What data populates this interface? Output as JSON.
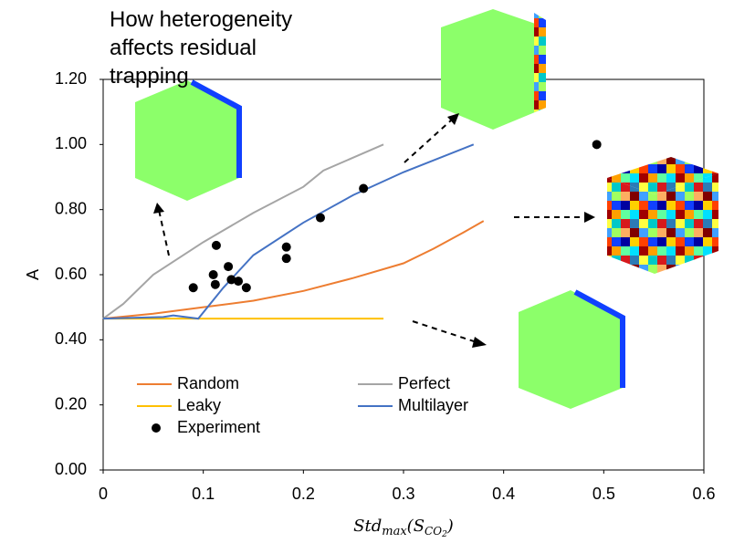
{
  "chart_data": {
    "type": "line",
    "title": "How heterogeneity affects residual trapping",
    "xlabel": [
      "Std",
      "max",
      "(S",
      "CO",
      "2",
      ")"
    ],
    "ylabel": "A",
    "xlim": [
      0,
      0.6
    ],
    "xticks": [
      0,
      0.1,
      0.2,
      0.3,
      0.4,
      0.5,
      0.6
    ],
    "ylim": [
      0,
      1.2
    ],
    "yticks": [
      {
        "value": 0,
        "label": "0.00"
      },
      {
        "value": 0.2,
        "label": "0.20"
      },
      {
        "value": 0.4,
        "label": "0.40"
      },
      {
        "value": 0.6,
        "label": "0.60"
      },
      {
        "value": 0.8,
        "label": "0.80"
      },
      {
        "value": 1.0,
        "label": "1.00"
      },
      {
        "value": 1.2,
        "label": "1.20"
      }
    ],
    "series": [
      {
        "name": "Random",
        "color": "#ed7d31",
        "x": [
          0,
          0.05,
          0.1,
          0.15,
          0.2,
          0.25,
          0.3,
          0.33,
          0.36,
          0.38
        ],
        "values": [
          0.465,
          0.48,
          0.5,
          0.52,
          0.55,
          0.59,
          0.635,
          0.68,
          0.73,
          0.765
        ]
      },
      {
        "name": "Perfect",
        "color": "#a5a5a5",
        "x": [
          0,
          0.02,
          0.05,
          0.1,
          0.15,
          0.2,
          0.22,
          0.25,
          0.28
        ],
        "values": [
          0.465,
          0.51,
          0.6,
          0.7,
          0.79,
          0.87,
          0.92,
          0.96,
          1.0
        ]
      },
      {
        "name": "Leaky",
        "color": "#ffc000",
        "x": [
          0,
          0.28
        ],
        "values": [
          0.465,
          0.465
        ]
      },
      {
        "name": "Multilayer",
        "color": "#4472c4",
        "x": [
          0,
          0.06,
          0.07,
          0.095,
          0.12,
          0.15,
          0.2,
          0.25,
          0.3,
          0.37
        ],
        "values": [
          0.465,
          0.47,
          0.475,
          0.465,
          0.56,
          0.66,
          0.76,
          0.845,
          0.915,
          1.0
        ]
      },
      {
        "name": "Experiment",
        "color": "#000000",
        "style": "markers",
        "x": [
          0.09,
          0.11,
          0.112,
          0.113,
          0.125,
          0.128,
          0.135,
          0.143,
          0.183,
          0.183,
          0.217,
          0.26,
          0.493
        ],
        "values": [
          0.56,
          0.6,
          0.57,
          0.69,
          0.625,
          0.585,
          0.58,
          0.56,
          0.685,
          0.65,
          0.775,
          0.865,
          1.0
        ]
      }
    ]
  }
}
